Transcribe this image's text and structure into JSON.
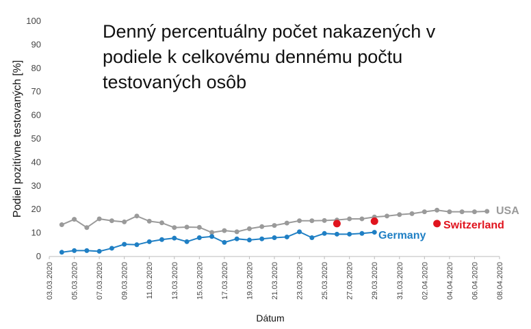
{
  "chart_data": {
    "type": "line",
    "title": "Denný percentuálny počet nakazených v podiele k celkovému dennému počtu testovaných osôb",
    "x_label": "Dátum",
    "y_label": "Podiel pozitívne testovaných [%]",
    "xlim": [
      "03.03.2020",
      "08.04.2020"
    ],
    "xticks": [
      "03.03.2020",
      "05.03.2020",
      "07.03.2020",
      "09.03.2020",
      "11.03.2020",
      "13.03.2020",
      "15.03.2020",
      "17.03.2020",
      "19.03.2020",
      "21.03.2020",
      "23.03.2020",
      "25.03.2020",
      "27.03.2020",
      "29.03.2020",
      "31.03.2020",
      "02.04.2020",
      "04.04.2020",
      "06.04.2020",
      "08.04.2020"
    ],
    "ylim": [
      0,
      100
    ],
    "yticks": [
      0,
      10,
      20,
      30,
      40,
      50,
      60,
      70,
      80,
      90,
      100
    ],
    "grid": false,
    "series": [
      {
        "name": "USA",
        "color": "#9a9a9a",
        "type": "line",
        "x": [
          "04.03.2020",
          "05.03.2020",
          "06.03.2020",
          "07.03.2020",
          "08.03.2020",
          "09.03.2020",
          "10.03.2020",
          "11.03.2020",
          "12.03.2020",
          "13.03.2020",
          "14.03.2020",
          "15.03.2020",
          "16.03.2020",
          "17.03.2020",
          "18.03.2020",
          "19.03.2020",
          "20.03.2020",
          "21.03.2020",
          "22.03.2020",
          "23.03.2020",
          "24.03.2020",
          "25.03.2020",
          "26.03.2020",
          "27.03.2020",
          "28.03.2020",
          "29.03.2020",
          "30.03.2020",
          "31.03.2020",
          "01.04.2020",
          "02.04.2020",
          "03.04.2020",
          "04.04.2020",
          "05.04.2020",
          "06.04.2020",
          "07.04.2020"
        ],
        "values": [
          13.5,
          15.8,
          12.3,
          16,
          15.2,
          14.7,
          17.2,
          15,
          14.3,
          12.3,
          12.5,
          12.4,
          10.2,
          11,
          10.5,
          11.8,
          12.7,
          13.2,
          14.2,
          15.2,
          15.2,
          15.3,
          15.5,
          16,
          16,
          16.8,
          17.2,
          17.8,
          18.2,
          19,
          19.7,
          19,
          19,
          19,
          19.2
        ]
      },
      {
        "name": "Germany",
        "color": "#1f7fc4",
        "type": "line",
        "x": [
          "04.03.2020",
          "05.03.2020",
          "06.03.2020",
          "07.03.2020",
          "08.03.2020",
          "09.03.2020",
          "10.03.2020",
          "11.03.2020",
          "12.03.2020",
          "13.03.2020",
          "14.03.2020",
          "15.03.2020",
          "16.03.2020",
          "17.03.2020",
          "18.03.2020",
          "19.03.2020",
          "20.03.2020",
          "21.03.2020",
          "22.03.2020",
          "23.03.2020",
          "24.03.2020",
          "25.03.2020",
          "26.03.2020",
          "27.03.2020",
          "28.03.2020",
          "29.03.2020"
        ],
        "values": [
          1.8,
          2.5,
          2.5,
          2.2,
          3.5,
          5.2,
          5,
          6.3,
          7.2,
          7.8,
          6.3,
          8,
          8.5,
          6,
          7.5,
          7,
          7.5,
          8,
          8.3,
          10.5,
          8,
          9.8,
          9.5,
          9.5,
          9.8,
          10.3
        ]
      },
      {
        "name": "Switzerland",
        "color": "#e0141e",
        "type": "scatter",
        "x": [
          "26.03.2020",
          "29.03.2020",
          "03.04.2020"
        ],
        "values": [
          14,
          15,
          14
        ]
      }
    ]
  }
}
